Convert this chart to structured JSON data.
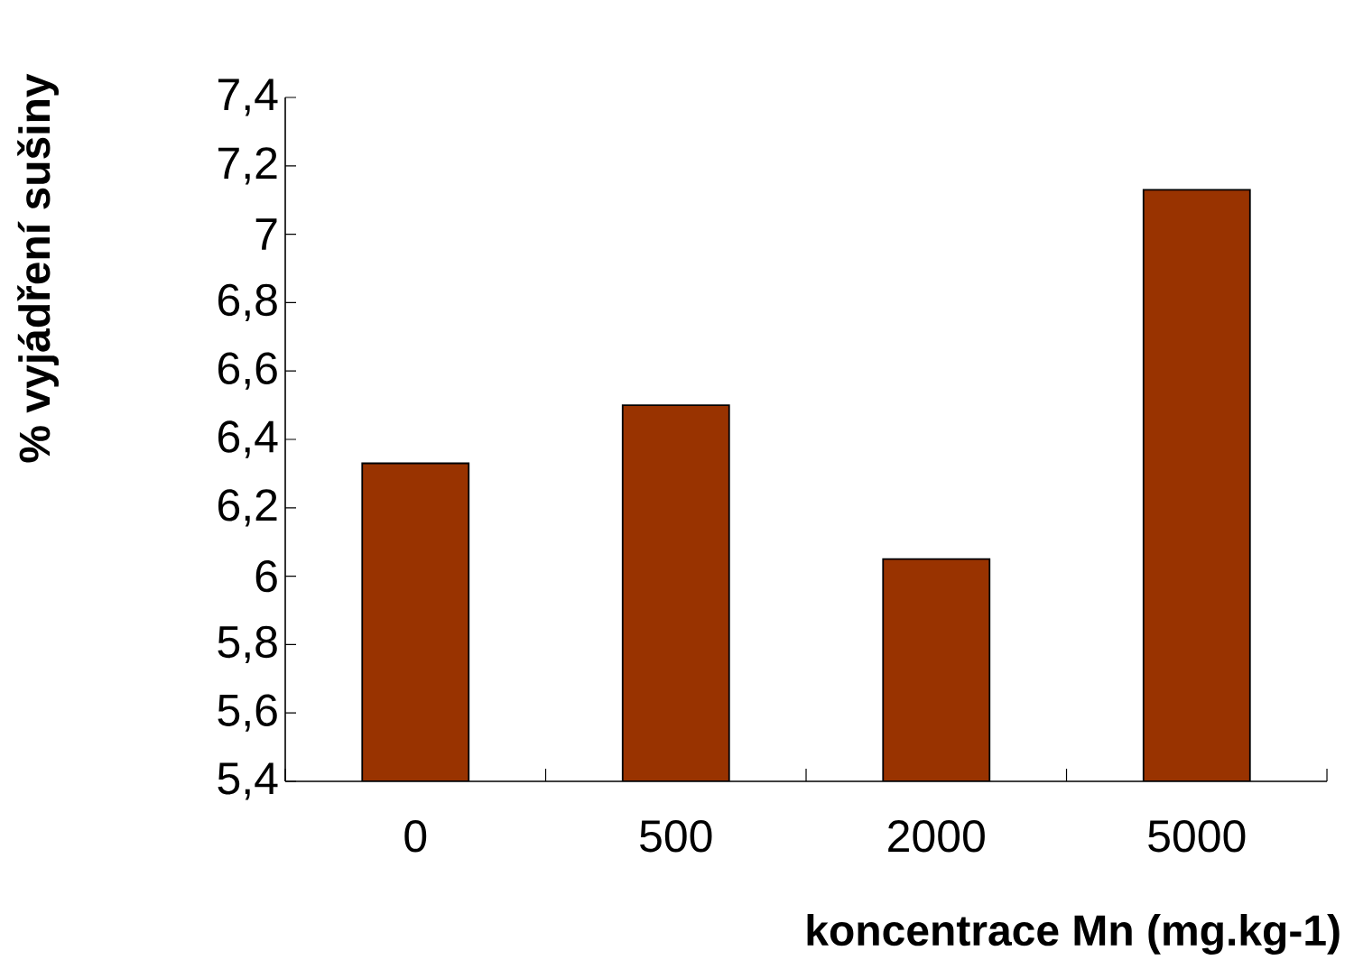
{
  "chart_data": {
    "type": "bar",
    "xlabel": "koncentrace Mn (mg.kg-1)",
    "ylabel": "% vyjádření sušiny",
    "categories": [
      "0",
      "500",
      "2000",
      "5000"
    ],
    "values": [
      6.33,
      6.5,
      6.05,
      7.13
    ],
    "color": "#993300",
    "ylim": [
      5.4,
      7.4
    ],
    "yticks": [
      {
        "value": 5.4,
        "label": "5,4"
      },
      {
        "value": 5.6,
        "label": "5,6"
      },
      {
        "value": 5.8,
        "label": "5,8"
      },
      {
        "value": 6,
        "label": "6"
      },
      {
        "value": 6.2,
        "label": "6,2"
      },
      {
        "value": 6.4,
        "label": "6,4"
      },
      {
        "value": 6.6,
        "label": "6,6"
      },
      {
        "value": 6.8,
        "label": "6,8"
      },
      {
        "value": 7,
        "label": "7"
      },
      {
        "value": 7.2,
        "label": "7,2"
      },
      {
        "value": 7.4,
        "label": "7,4"
      }
    ],
    "grid": false
  }
}
